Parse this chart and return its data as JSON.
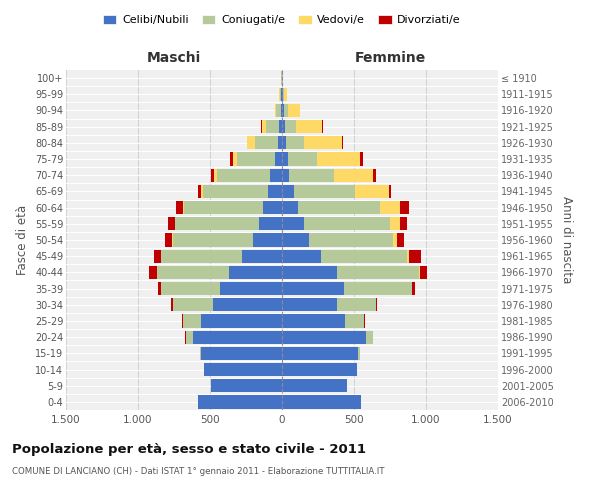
{
  "age_groups": [
    "0-4",
    "5-9",
    "10-14",
    "15-19",
    "20-24",
    "25-29",
    "30-34",
    "35-39",
    "40-44",
    "45-49",
    "50-54",
    "55-59",
    "60-64",
    "65-69",
    "70-74",
    "75-79",
    "80-84",
    "85-89",
    "90-94",
    "95-99",
    "100+"
  ],
  "birth_years": [
    "2006-2010",
    "2001-2005",
    "1996-2000",
    "1991-1995",
    "1986-1990",
    "1981-1985",
    "1976-1980",
    "1971-1975",
    "1966-1970",
    "1961-1965",
    "1956-1960",
    "1951-1955",
    "1946-1950",
    "1941-1945",
    "1936-1940",
    "1931-1935",
    "1926-1930",
    "1921-1925",
    "1916-1920",
    "1911-1915",
    "≤ 1910"
  ],
  "male": {
    "celibe": [
      580,
      490,
      540,
      560,
      620,
      560,
      480,
      430,
      370,
      280,
      200,
      160,
      130,
      100,
      80,
      50,
      30,
      20,
      10,
      5,
      2
    ],
    "coniugato": [
      0,
      0,
      2,
      10,
      50,
      130,
      280,
      410,
      500,
      560,
      560,
      580,
      550,
      450,
      370,
      260,
      160,
      90,
      30,
      10,
      2
    ],
    "vedovo": [
      0,
      0,
      0,
      0,
      0,
      0,
      0,
      1,
      1,
      1,
      2,
      3,
      5,
      10,
      20,
      30,
      50,
      30,
      10,
      3,
      0
    ],
    "divorziato": [
      0,
      0,
      0,
      0,
      2,
      5,
      10,
      20,
      50,
      50,
      50,
      50,
      50,
      20,
      20,
      20,
      5,
      5,
      0,
      0,
      0
    ]
  },
  "female": {
    "nubile": [
      550,
      450,
      520,
      530,
      580,
      440,
      380,
      430,
      380,
      270,
      190,
      150,
      110,
      80,
      50,
      40,
      30,
      20,
      15,
      5,
      2
    ],
    "coniugata": [
      0,
      0,
      2,
      10,
      50,
      130,
      270,
      470,
      570,
      600,
      580,
      600,
      570,
      430,
      310,
      200,
      120,
      80,
      30,
      8,
      2
    ],
    "vedova": [
      0,
      0,
      0,
      0,
      0,
      0,
      1,
      2,
      5,
      15,
      30,
      70,
      140,
      230,
      270,
      300,
      270,
      180,
      80,
      20,
      2
    ],
    "divorziata": [
      0,
      0,
      0,
      0,
      2,
      5,
      10,
      20,
      50,
      80,
      50,
      50,
      60,
      20,
      20,
      20,
      5,
      5,
      0,
      0,
      0
    ]
  },
  "colors": {
    "celibe": "#4472C4",
    "coniugato": "#b5c99a",
    "vedovo": "#FFD966",
    "divorziato": "#C00000"
  },
  "xlim": 1500,
  "xticks": [
    -1500,
    -1000,
    -500,
    0,
    500,
    1000,
    1500
  ],
  "xticklabels": [
    "1.500",
    "1.000",
    "500",
    "0",
    "500",
    "1.000",
    "1.500"
  ],
  "title": "Popolazione per età, sesso e stato civile - 2011",
  "subtitle": "COMUNE DI LANCIANO (CH) - Dati ISTAT 1° gennaio 2011 - Elaborazione TUTTITALIA.IT",
  "label_maschi": "Maschi",
  "label_femmine": "Femmine",
  "ylabel_left": "Fasce di età",
  "ylabel_right": "Anni di nascita",
  "legend_labels": [
    "Celibi/Nubili",
    "Coniugati/e",
    "Vedovi/e",
    "Divorziati/e"
  ],
  "bg_color": "#ffffff",
  "plot_bg": "#f0f0f0",
  "grid_color": "#cccccc"
}
